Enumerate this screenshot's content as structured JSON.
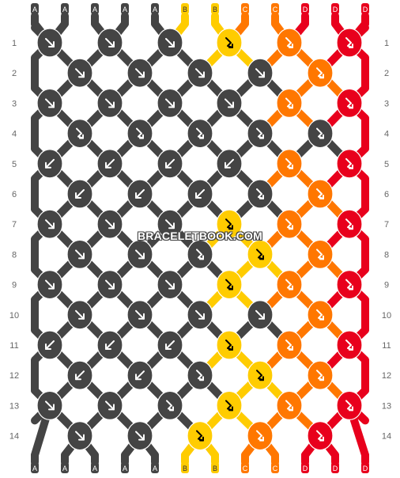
{
  "pattern": {
    "strand_letters": [
      "A",
      "A",
      "A",
      "A",
      "A",
      "B",
      "B",
      "C",
      "C",
      "D",
      "D",
      "D"
    ],
    "row_numbers": [
      "1",
      "2",
      "3",
      "4",
      "5",
      "6",
      "7",
      "8",
      "9",
      "10",
      "11",
      "12",
      "13",
      "14"
    ],
    "colors": {
      "A": "#444444",
      "B": "#ffcc00",
      "C": "#ff7700",
      "D": "#e8001c"
    },
    "knot_color_map": [
      [
        "A",
        "A",
        "A",
        "B",
        "C",
        "D"
      ],
      [
        "A",
        "A",
        "A",
        "A",
        "C",
        "D"
      ],
      [
        "A",
        "A",
        "A",
        "A",
        "C",
        "D"
      ],
      [
        "A",
        "A",
        "A",
        "A",
        "A",
        "D"
      ],
      [
        "A",
        "A",
        "A",
        "A",
        "C",
        "D"
      ],
      [
        "A",
        "A",
        "A",
        "A",
        "C",
        "D"
      ],
      [
        "A",
        "A",
        "A",
        "B",
        "C",
        "D"
      ],
      [
        "A",
        "A",
        "A",
        "B",
        "C",
        "D"
      ],
      [
        "A",
        "A",
        "A",
        "B",
        "C",
        "D"
      ],
      [
        "A",
        "A",
        "A",
        "A",
        "C",
        "D"
      ],
      [
        "A",
        "A",
        "A",
        "B",
        "C",
        "D"
      ],
      [
        "A",
        "A",
        "A",
        "B",
        "C",
        "D"
      ],
      [
        "A",
        "A",
        "A",
        "B",
        "C",
        "D"
      ],
      [
        "A",
        "A",
        "B",
        "C",
        "D"
      ]
    ],
    "knot_types": [
      [
        "f",
        "f",
        "f",
        "fb",
        "fb",
        "fb"
      ],
      [
        "f",
        "f",
        "f",
        "f",
        "fb",
        "fb"
      ],
      [
        "f",
        "f",
        "f",
        "f",
        "fb",
        "fb"
      ],
      [
        "fb",
        "fb",
        "fb",
        "fb",
        "fb",
        "fb"
      ],
      [
        "b",
        "b",
        "b",
        "b",
        "fb",
        "fb"
      ],
      [
        "b",
        "b",
        "b",
        "fb",
        "fb",
        "fb"
      ],
      [
        "f",
        "f",
        "f",
        "fb",
        "fb",
        "fb"
      ],
      [
        "f",
        "f",
        "fb",
        "fb",
        "fb",
        "fb"
      ],
      [
        "f",
        "f",
        "f",
        "fb",
        "fb",
        "fb"
      ],
      [
        "f",
        "f",
        "f",
        "f",
        "fb",
        "fb"
      ],
      [
        "b",
        "b",
        "b",
        "fb",
        "fb",
        "fb"
      ],
      [
        "b",
        "b",
        "fb",
        "fb",
        "fb",
        "fb"
      ],
      [
        "f",
        "f",
        "fb",
        "fb",
        "fb",
        "fb"
      ],
      [
        "f",
        "f",
        "fb",
        "fb",
        "fb"
      ]
    ],
    "watermark": "BRACELETBOOK.COM"
  }
}
